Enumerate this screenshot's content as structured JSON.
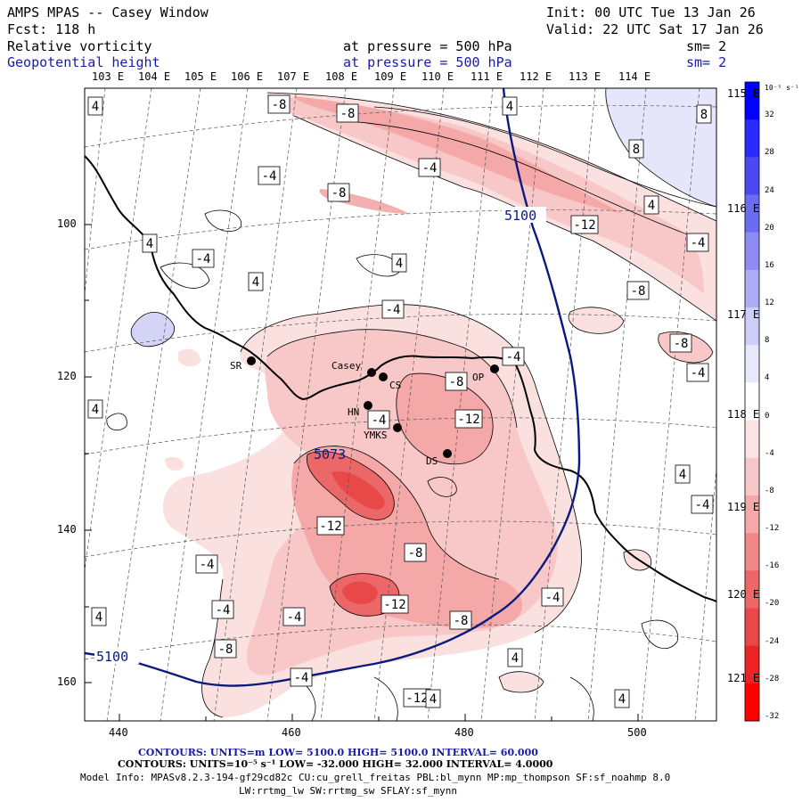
{
  "header": {
    "model": "AMPS MPAS -- Casey Window",
    "init": "Init: 00 UTC Tue 13 Jan 26",
    "forecast": "Fcst:  118 h",
    "valid": "Valid: 22 UTC Sat 17 Jan 26",
    "field1": {
      "name": "Relative vorticity",
      "level": "at pressure =  500 hPa",
      "smooth": "sm= 2"
    },
    "field2": {
      "name": "Geopotential height",
      "level": "at pressure =  500 hPa",
      "smooth": "sm= 2"
    }
  },
  "axes": {
    "top_lon_labels": [
      "103 E",
      "104 E",
      "105 E",
      "106 E",
      "107 E",
      "108 E",
      "109 E",
      "110 E",
      "111 E",
      "112 E",
      "113 E",
      "114 E"
    ],
    "right_lon_labels": [
      "115 E",
      "116 E",
      "117 E",
      "118 E",
      "119 E",
      "120 E",
      "121 E"
    ],
    "x_ticks": [
      "440",
      "460",
      "480",
      "500"
    ],
    "y_ticks": [
      "100",
      "120",
      "140",
      "160"
    ]
  },
  "colorbar": {
    "unit": "10⁻⁵ s⁻¹",
    "labels": [
      "32",
      "28",
      "24",
      "20",
      "16",
      "12",
      "8",
      "4",
      "0",
      "-4",
      "-8",
      "-12",
      "-16",
      "-20",
      "-24",
      "-28",
      "-32"
    ],
    "colors": [
      "#0000ff",
      "#2a2aff",
      "#4a4af0",
      "#6c6cf0",
      "#8c8cf4",
      "#adadf6",
      "#cdcdf9",
      "#e8e8fb",
      "#ffffff",
      "#fbe4e4",
      "#f8c8c8",
      "#f4a8a8",
      "#f08888",
      "#ec6868",
      "#e84848",
      "#ec2424",
      "#ff0000"
    ]
  },
  "stations": [
    {
      "code": "SR"
    },
    {
      "code": "Casey"
    },
    {
      "code": "CS"
    },
    {
      "code": "OP"
    },
    {
      "code": "HN"
    },
    {
      "code": "YMKS"
    },
    {
      "code": "DS"
    }
  ],
  "contour_labels": [
    "-8",
    "-8",
    "4",
    "8",
    "-4",
    "-4",
    "-8",
    "4",
    "-12",
    "4",
    "-4",
    "4",
    "4",
    "-4",
    "8",
    "4",
    "-8",
    "-8",
    "-4",
    "-4",
    "-8",
    "-12",
    "-4",
    "-4",
    "-12",
    "4",
    "-4",
    "-12",
    "-8",
    "-4",
    "-4",
    "-12",
    "-4",
    "4",
    "-8",
    "-4",
    "-8",
    "4",
    "4",
    "-4",
    "4",
    "4"
  ],
  "height_labels": [
    "5100",
    "5100",
    "5073"
  ],
  "footer": {
    "line1": "CONTOURS:  UNITS=m  LOW=  5100.0          HIGH=  5100.0          INTERVAL=   60.000",
    "line2": "CONTOURS:  UNITS=10⁻⁵ s⁻¹  LOW= -32.000        HIGH=  32.000        INTERVAL=   4.0000",
    "line3": "Model Info: MPASv8.2.3-194-gf29cd82c CU:cu_grell_freitas PBL:bl_mynn MP:mp_thompson SF:sf_noahmp 8.0",
    "line4": "LW:rrtmg_lw SW:rrtmg_sw SFLAY:sf_mynn"
  }
}
